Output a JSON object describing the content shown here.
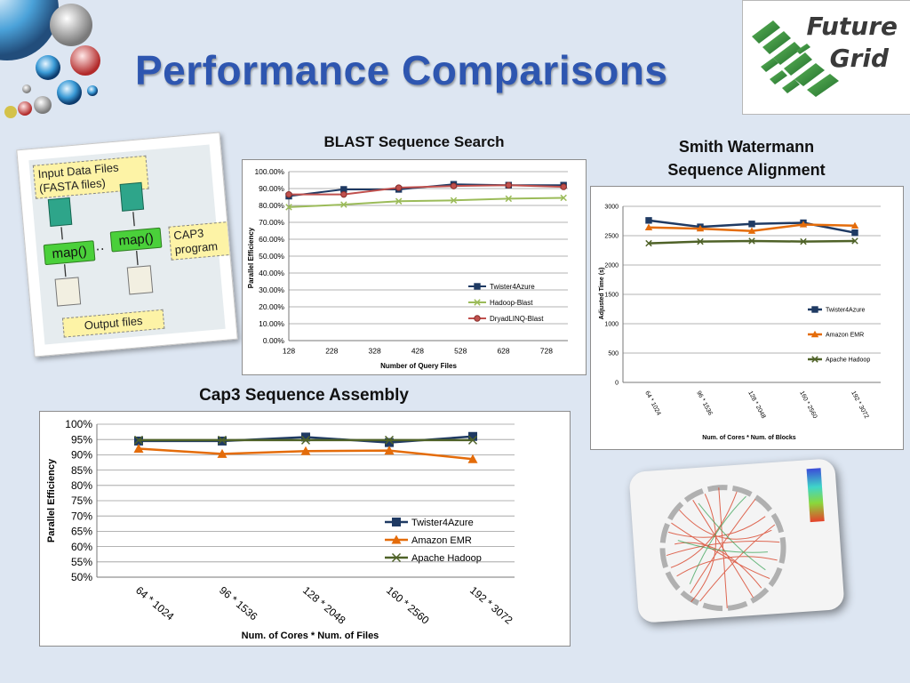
{
  "slide": {
    "title": "Performance Comparisons"
  },
  "logo": {
    "line1": "Future",
    "line2": "Grid"
  },
  "diagram": {
    "input_label": "Input Data Files (FASTA files)",
    "map_label": "map()",
    "dots": "··",
    "cap3_label": "CAP3 program",
    "output_label": "Output files"
  },
  "colors": {
    "title": "#2e56b0",
    "series_blue": "#1f3a63",
    "series_orange": "#e46c0a",
    "series_green": "#4f6228",
    "series_red": "#c0504d",
    "series_lightgreen": "#9bbb59"
  },
  "chart_data": [
    {
      "type": "line",
      "title": "BLAST Sequence Search",
      "xlabel": "Number of Query Files",
      "ylabel": "Parallel Efficiency",
      "x_ticks": [
        "128",
        "228",
        "328",
        "428",
        "528",
        "628",
        "728"
      ],
      "y_ticks": [
        "0.00%",
        "10.00%",
        "20.00%",
        "30.00%",
        "40.00%",
        "50.00%",
        "60.00%",
        "70.00%",
        "80.00%",
        "90.00%",
        "100.00%"
      ],
      "xlim": [
        128,
        778
      ],
      "ylim": [
        0,
        100
      ],
      "grid": true,
      "legend": "bottom-right",
      "series": [
        {
          "name": "Twister4Azure",
          "color": "#1f3a63",
          "marker": "square",
          "x": [
            128,
            256,
            384,
            512,
            640,
            768
          ],
          "y": [
            85.5,
            89.5,
            89.5,
            92.5,
            92.0,
            92.0
          ]
        },
        {
          "name": "Hadoop-Blast",
          "color": "#9bbb59",
          "marker": "x",
          "x": [
            128,
            256,
            384,
            512,
            640,
            768
          ],
          "y": [
            79,
            80.5,
            82.5,
            83,
            84,
            84.5
          ]
        },
        {
          "name": "DryadLINQ-Blast",
          "color": "#c0504d",
          "marker": "circle",
          "x": [
            128,
            256,
            384,
            512,
            640,
            768
          ],
          "y": [
            86.5,
            86.5,
            90.5,
            91.5,
            92,
            91
          ]
        }
      ]
    },
    {
      "type": "line",
      "title": "Smith Watermann Sequence Alignment",
      "xlabel": "Num. of Cores * Num. of Blocks",
      "ylabel": "Adjusted Time (s)",
      "categories": [
        "64 * 1024",
        "96 * 1536",
        "128 * 2048",
        "160 * 2560",
        "192 * 3072"
      ],
      "y_ticks": [
        "0",
        "500",
        "1000",
        "1500",
        "2000",
        "2500",
        "3000"
      ],
      "ylim": [
        0,
        3000
      ],
      "grid": true,
      "legend": "right",
      "series": [
        {
          "name": "Twister4Azure",
          "color": "#1f3a63",
          "marker": "square",
          "values": [
            2760,
            2650,
            2700,
            2720,
            2550
          ]
        },
        {
          "name": "Amazon EMR",
          "color": "#e46c0a",
          "marker": "triangle",
          "values": [
            2640,
            2620,
            2580,
            2690,
            2670
          ]
        },
        {
          "name": "Apache Hadoop",
          "color": "#4f6228",
          "marker": "x",
          "values": [
            2370,
            2400,
            2410,
            2400,
            2410
          ]
        }
      ]
    },
    {
      "type": "line",
      "title": "Cap3 Sequence Assembly",
      "xlabel": "Num. of Cores * Num. of Files",
      "ylabel": "Parallel Efficiency",
      "categories": [
        "64 * 1024",
        "96 * 1536",
        "128 * 2048",
        "160 * 2560",
        "192 * 3072"
      ],
      "y_ticks": [
        "50%",
        "55%",
        "60%",
        "65%",
        "70%",
        "75%",
        "80%",
        "85%",
        "90%",
        "95%",
        "100%"
      ],
      "ylim": [
        50,
        100
      ],
      "grid": true,
      "legend": "bottom-right",
      "series": [
        {
          "name": "Twister4Azure",
          "color": "#1f3a63",
          "marker": "square",
          "values": [
            94.5,
            94.5,
            95.8,
            94.0,
            96.0
          ]
        },
        {
          "name": "Amazon EMR",
          "color": "#e46c0a",
          "marker": "triangle",
          "values": [
            92.0,
            90.3,
            91.2,
            91.4,
            88.6
          ]
        },
        {
          "name": "Apache Hadoop",
          "color": "#4f6228",
          "marker": "x",
          "values": [
            94.8,
            94.8,
            94.8,
            94.8,
            94.8
          ]
        }
      ]
    }
  ]
}
